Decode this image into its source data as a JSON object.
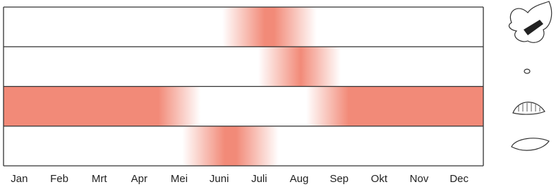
{
  "chart_data": {
    "type": "range",
    "categories": [
      "Jan",
      "Feb",
      "Mrt",
      "Apr",
      "Mei",
      "Juni",
      "Juli",
      "Aug",
      "Sep",
      "Okt",
      "Nov",
      "Dec"
    ],
    "xlim": [
      0,
      12
    ],
    "series": [
      {
        "color": "#f28a78",
        "values": [
          [
            6.0,
            7.3
          ]
        ]
      },
      {
        "color": "#f28a78",
        "values": [
          [
            6.9,
            7.9
          ]
        ]
      },
      {
        "color": "#f28a78",
        "values": [
          [
            0,
            4.4
          ],
          [
            8.1,
            12
          ]
        ]
      },
      {
        "color": "#f28a78",
        "values": [
          [
            5.0,
            6.35
          ]
        ]
      }
    ]
  }
}
